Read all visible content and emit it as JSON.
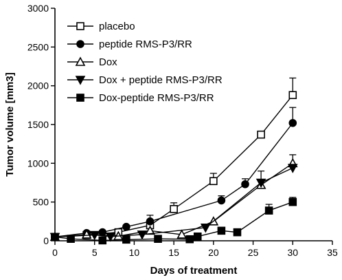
{
  "chart_data": {
    "type": "line",
    "xlabel": "Days of treatment",
    "ylabel": "Tumor volume [mm3]",
    "xlim": [
      0,
      35
    ],
    "ylim": [
      0,
      3000
    ],
    "x_ticks": [
      0,
      5,
      10,
      15,
      20,
      25,
      30,
      35
    ],
    "y_ticks": [
      0,
      500,
      1000,
      1500,
      2000,
      2500,
      3000
    ],
    "grid": false,
    "legend_position": "top-left",
    "series": [
      {
        "name": "placebo",
        "marker": "open-square",
        "x": [
          0,
          4,
          8,
          12,
          15,
          20,
          26,
          30
        ],
        "y": [
          50,
          75,
          110,
          200,
          410,
          770,
          1370,
          1880
        ],
        "err": [
          0,
          0,
          20,
          40,
          80,
          100,
          40,
          220
        ]
      },
      {
        "name": "peptide RMS-P3/RR",
        "marker": "filled-circle",
        "x": [
          0,
          4,
          6,
          9,
          12,
          21,
          24,
          30
        ],
        "y": [
          50,
          100,
          110,
          180,
          250,
          520,
          730,
          1520
        ],
        "err": [
          0,
          0,
          0,
          20,
          80,
          60,
          70,
          200
        ]
      },
      {
        "name": "Dox",
        "marker": "open-triangle-up",
        "x": [
          0,
          4,
          8,
          12,
          16,
          20,
          26,
          30
        ],
        "y": [
          50,
          80,
          60,
          130,
          80,
          250,
          720,
          1000
        ],
        "err": [
          0,
          0,
          0,
          0,
          0,
          0,
          180,
          110
        ]
      },
      {
        "name": "Dox + peptide RMS-P3/RR",
        "marker": "filled-triangle-down",
        "x": [
          0,
          5,
          7,
          11,
          19,
          26,
          30
        ],
        "y": [
          50,
          75,
          55,
          80,
          170,
          750,
          940
        ],
        "err": [
          0,
          0,
          0,
          0,
          0,
          0,
          0
        ]
      },
      {
        "name": "Dox-peptide RMS-P3/RR",
        "marker": "filled-square",
        "x": [
          0,
          2,
          6,
          9,
          13,
          17,
          18,
          21,
          23,
          27,
          30
        ],
        "y": [
          50,
          25,
          5,
          15,
          25,
          20,
          55,
          130,
          110,
          390,
          500
        ],
        "err": [
          0,
          0,
          0,
          0,
          0,
          0,
          0,
          0,
          0,
          80,
          60
        ]
      }
    ]
  }
}
